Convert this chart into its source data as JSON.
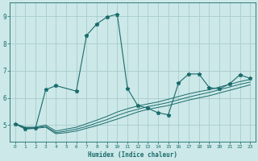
{
  "xlabel": "Humidex (Indice chaleur)",
  "background_color": "#cce8e8",
  "grid_color": "#aacccc",
  "line_color": "#1a6b6b",
  "xlim": [
    -0.5,
    23.5
  ],
  "ylim": [
    4.4,
    9.5
  ],
  "yticks": [
    5,
    6,
    7,
    8,
    9
  ],
  "xticks": [
    0,
    1,
    2,
    3,
    4,
    5,
    6,
    7,
    8,
    9,
    10,
    11,
    12,
    13,
    14,
    15,
    16,
    17,
    18,
    19,
    20,
    21,
    22,
    23
  ],
  "line1_x": [
    0,
    1,
    2,
    3,
    4,
    5,
    6,
    7,
    8,
    9,
    10,
    11,
    12,
    13,
    14,
    15,
    16,
    17,
    18,
    19,
    20,
    21,
    22,
    23
  ],
  "line1_y": [
    5.05,
    4.88,
    4.88,
    4.92,
    4.68,
    4.72,
    4.78,
    4.88,
    4.98,
    5.1,
    5.22,
    5.35,
    5.48,
    5.58,
    5.65,
    5.72,
    5.82,
    5.92,
    6.0,
    6.08,
    6.18,
    6.28,
    6.38,
    6.48
  ],
  "line2_x": [
    0,
    1,
    2,
    3,
    4,
    5,
    6,
    7,
    8,
    9,
    10,
    11,
    12,
    13,
    14,
    15,
    16,
    17,
    18,
    19,
    20,
    21,
    22,
    23
  ],
  "line2_y": [
    5.05,
    4.9,
    4.9,
    4.95,
    4.72,
    4.78,
    4.85,
    4.95,
    5.08,
    5.2,
    5.35,
    5.48,
    5.58,
    5.68,
    5.75,
    5.83,
    5.93,
    6.03,
    6.12,
    6.2,
    6.3,
    6.4,
    6.5,
    6.58
  ],
  "line3_x": [
    0,
    1,
    2,
    3,
    4,
    5,
    6,
    7,
    8,
    9,
    10,
    11,
    12,
    13,
    14,
    15,
    16,
    17,
    18,
    19,
    20,
    21,
    22,
    23
  ],
  "line3_y": [
    5.05,
    4.92,
    4.92,
    5.0,
    4.78,
    4.85,
    4.92,
    5.05,
    5.18,
    5.32,
    5.48,
    5.6,
    5.7,
    5.78,
    5.85,
    5.95,
    6.05,
    6.15,
    6.23,
    6.3,
    6.4,
    6.5,
    6.6,
    6.68
  ],
  "curve_x": [
    0,
    1,
    2,
    3,
    4,
    6,
    7,
    8,
    9,
    10,
    11,
    12,
    13,
    14,
    15,
    16,
    17,
    18,
    19,
    20,
    21,
    22,
    23
  ],
  "curve_y": [
    5.05,
    4.85,
    4.88,
    6.3,
    6.45,
    6.25,
    8.3,
    8.72,
    8.98,
    9.08,
    6.35,
    5.72,
    5.62,
    5.45,
    5.38,
    6.55,
    6.88,
    6.88,
    6.38,
    6.33,
    6.52,
    6.85,
    6.72
  ]
}
